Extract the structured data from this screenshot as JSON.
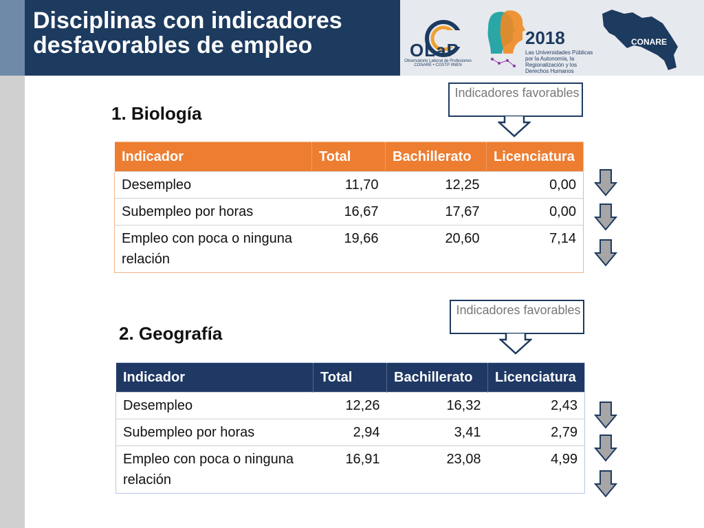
{
  "header": {
    "title": "Disciplinas con indicadores desfavorables de empleo",
    "logo": {
      "olap_text": "OLaP",
      "olap_sub": "Observatorio Laboral de Profesiones CONARE • COSTP IINEN",
      "year": "2018",
      "slogan": "Las Universidades Públicas por la Autonomía, la Regionalización y los Derechos Humanos",
      "conare": "CONARE"
    }
  },
  "callout_label": "Indicadores favorables",
  "sections": [
    {
      "title": "1. Biología",
      "columns": [
        "Indicador",
        "Total",
        "Bachillerato",
        "Licenciatura"
      ],
      "rows": [
        {
          "indicador": "Desempleo",
          "total": "11,70",
          "bachillerato": "12,25",
          "licenciatura": "0,00"
        },
        {
          "indicador": "Subempleo por horas",
          "total": "16,67",
          "bachillerato": "17,67",
          "licenciatura": "0,00"
        },
        {
          "indicador": "Empleo con poca o ninguna relación",
          "total": "19,66",
          "bachillerato": "20,60",
          "licenciatura": "7,14"
        }
      ]
    },
    {
      "title": "2. Geografía",
      "columns": [
        "Indicador",
        "Total",
        "Bachillerato",
        "Licenciatura"
      ],
      "rows": [
        {
          "indicador": "Desempleo",
          "total": "12,26",
          "bachillerato": "16,32",
          "licenciatura": "2,43"
        },
        {
          "indicador": "Subempleo por horas",
          "total": "2,94",
          "bachillerato": "3,41",
          "licenciatura": "2,79"
        },
        {
          "indicador": "Empleo con poca o ninguna relación",
          "total": "16,91",
          "bachillerato": "23,08",
          "licenciatura": "4,99"
        }
      ]
    }
  ],
  "colors": {
    "title_band": "#1d3a5f",
    "table1_header": "#ed7d31",
    "table2_header": "#1f3864"
  }
}
